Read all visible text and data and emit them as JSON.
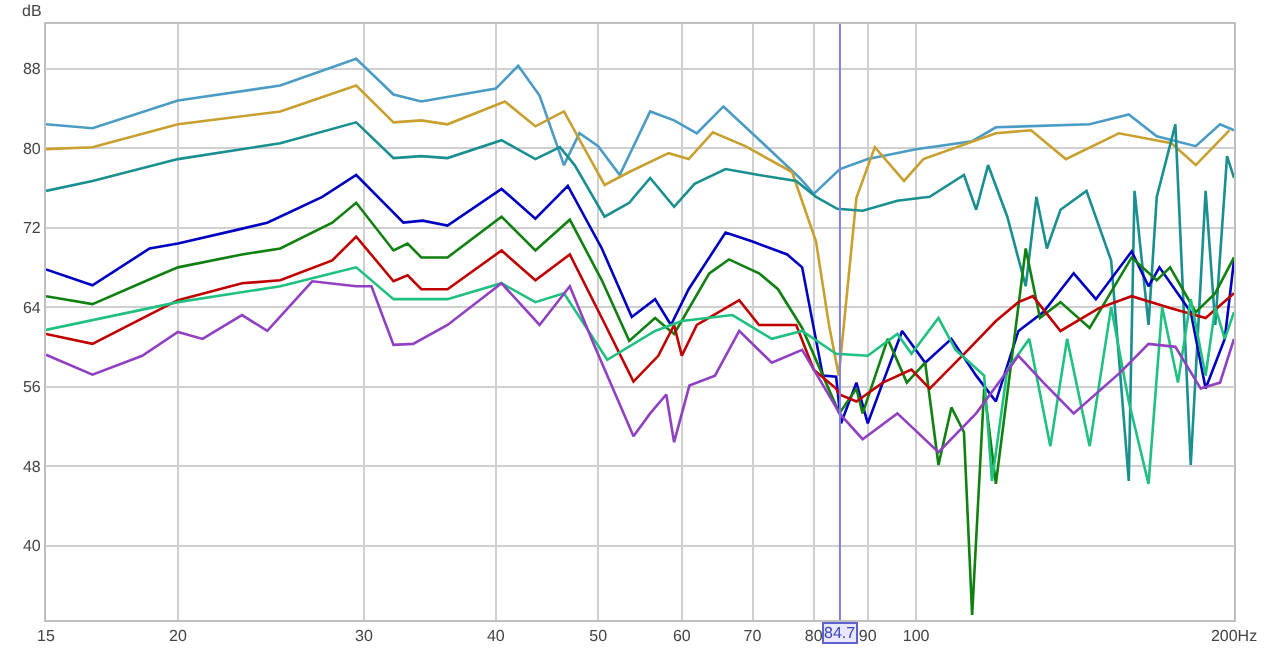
{
  "chart_data": {
    "type": "line",
    "ylabel": "dB",
    "log": "x",
    "grid": true,
    "marker": "none",
    "line_style": "solid",
    "xlim": [
      15,
      200
    ],
    "xticks": [
      15,
      20,
      30,
      40,
      50,
      60,
      70,
      80,
      90,
      100,
      {
        "value": 200,
        "label": "200Hz"
      }
    ],
    "ylim": [
      32.5,
      92.5
    ],
    "yticks": [
      40,
      48,
      56,
      64,
      72,
      80,
      88
    ],
    "ref_lines": [
      {
        "axis": "x",
        "value": 84.7,
        "label": "84.7",
        "color": "#8080e0"
      }
    ],
    "series": [
      {
        "color": "#4a9cc4",
        "x": [
          15,
          16.6,
          20,
          25,
          29.5,
          32,
          34,
          40,
          42,
          44,
          46.4,
          48,
          50,
          52.4,
          56,
          59,
          62,
          65.7,
          71.6,
          77.6,
          80,
          84.7,
          90,
          100,
          113,
          119,
          146,
          159,
          169,
          184,
          194,
          200
        ],
        "values": [
          82.4,
          82,
          84.8,
          86.3,
          89,
          85.4,
          84.7,
          86,
          88.3,
          85.3,
          78.3,
          81.5,
          80.2,
          77.3,
          83.7,
          82.8,
          81.5,
          84.2,
          80.5,
          77,
          75.4,
          77.9,
          78.9,
          79.9,
          80.7,
          82.1,
          82.4,
          83.4,
          81.2,
          80.2,
          82.4,
          81.8
        ]
      },
      {
        "color": "#c8a030",
        "x": [
          15,
          16.6,
          20,
          25,
          29.5,
          32,
          34,
          36,
          40.8,
          43.6,
          46.4,
          50.7,
          53.5,
          58.3,
          60.9,
          64.2,
          68.9,
          76.3,
          80.4,
          82.7,
          84.5,
          87.8,
          91.4,
          97.4,
          101.6,
          119,
          128.5,
          138.6,
          155.6,
          174.5,
          184,
          198
        ],
        "values": [
          79.9,
          80.1,
          82.4,
          83.7,
          86.3,
          82.6,
          82.8,
          82.4,
          84.7,
          82.2,
          83.7,
          76.3,
          77.6,
          79.5,
          78.9,
          81.6,
          80.2,
          77.6,
          70.6,
          62.2,
          57.1,
          75,
          80.1,
          76.7,
          78.9,
          81.5,
          81.8,
          78.9,
          81.5,
          80.5,
          78.3,
          81.8
        ]
      },
      {
        "color": "#1a8f8f",
        "x": [
          15,
          16.6,
          20,
          25,
          29.5,
          32,
          34,
          36,
          40.5,
          43.6,
          46,
          47.5,
          50.7,
          53.5,
          56,
          59,
          61.7,
          66,
          71,
          77,
          80.4,
          84.2,
          89,
          96,
          103,
          111,
          114,
          117,
          122,
          127,
          130,
          133,
          137,
          145,
          153,
          159,
          161,
          166,
          169,
          176,
          182,
          188,
          192,
          197,
          200
        ],
        "values": [
          75.7,
          76.7,
          78.9,
          80.5,
          82.6,
          79,
          79.2,
          79,
          80.8,
          78.9,
          80.1,
          78.3,
          73.1,
          74.5,
          77,
          74.1,
          76.4,
          77.9,
          77.3,
          76.7,
          75.1,
          73.9,
          73.7,
          74.7,
          75.1,
          77.3,
          73.8,
          78.3,
          73.1,
          66.1,
          75.1,
          69.9,
          73.8,
          75.7,
          68.7,
          46.5,
          75.7,
          62.2,
          75.1,
          82.4,
          48.1,
          75.7,
          62.2,
          79.2,
          77
        ]
      },
      {
        "color": "#0000c0",
        "x": [
          15,
          16.6,
          18.8,
          20,
          22.8,
          24.3,
          27.4,
          29.5,
          32.7,
          34.1,
          36,
          40.5,
          43.6,
          46.8,
          50.4,
          53.8,
          56.6,
          58.6,
          60.9,
          66,
          70,
          75.5,
          78,
          81.6,
          84,
          84.9,
          87.8,
          90,
          93,
          97,
          102,
          108,
          114,
          119,
          125,
          132,
          141,
          148,
          160,
          166,
          170,
          182,
          188,
          196,
          200
        ],
        "values": [
          67.8,
          66.2,
          69.9,
          70.4,
          71.8,
          72.5,
          75.1,
          77.3,
          72.5,
          72.7,
          72.2,
          75.9,
          72.9,
          76.2,
          69.9,
          63,
          64.8,
          62.2,
          65.8,
          71.5,
          70.6,
          69.3,
          68,
          57.1,
          57,
          52.3,
          56.4,
          52.3,
          56.4,
          61.6,
          58.4,
          60.8,
          57.1,
          54.5,
          61.6,
          63.5,
          67.4,
          64.8,
          69.6,
          66.1,
          68,
          63.5,
          55.8,
          60.8,
          68.7
        ]
      },
      {
        "color": "#108010",
        "x": [
          15,
          16.6,
          19,
          20,
          23,
          25,
          28,
          29.5,
          32,
          33,
          34,
          36,
          40.5,
          43.6,
          47,
          50.4,
          53.5,
          56.6,
          59,
          63.7,
          66.5,
          71,
          74,
          78,
          81.6,
          84.6,
          87.8,
          89,
          94,
          98,
          102,
          105,
          108,
          111,
          113,
          116,
          119,
          127,
          131,
          137,
          146,
          160,
          169,
          174,
          184,
          192,
          200
        ],
        "values": [
          65.1,
          64.3,
          67,
          68,
          69.3,
          69.9,
          72.5,
          74.5,
          69.7,
          70.4,
          69,
          69,
          73.1,
          69.7,
          72.8,
          66.7,
          60.6,
          62.9,
          61.3,
          67.4,
          68.8,
          67.4,
          65.8,
          61.9,
          57.1,
          53.3,
          55.8,
          53.3,
          60.8,
          56.4,
          58.4,
          48.1,
          53.9,
          51.4,
          33,
          55.8,
          46.2,
          69.9,
          62.9,
          64.5,
          61.9,
          69,
          66.7,
          68,
          63.5,
          65.4,
          69
        ]
      },
      {
        "color": "#c00000",
        "x": [
          15,
          16.6,
          19,
          20,
          23,
          25,
          28,
          29.5,
          32,
          33,
          34,
          36,
          40.5,
          43.6,
          47,
          50.4,
          54,
          57,
          59,
          60,
          62,
          68,
          71,
          77,
          80,
          84,
          84.6,
          87.8,
          93,
          99,
          103,
          112,
          119,
          125,
          129,
          137,
          149,
          160,
          174,
          188,
          200
        ],
        "values": [
          61.3,
          60.3,
          63.5,
          64.7,
          66.4,
          66.7,
          68.7,
          71.1,
          66.6,
          67.2,
          65.8,
          65.8,
          69.7,
          66.7,
          69.3,
          62.9,
          56.5,
          59.1,
          62.2,
          59.1,
          62.2,
          64.7,
          62.2,
          62.2,
          57.7,
          55.8,
          55.2,
          54.5,
          56.4,
          57.7,
          55.8,
          59.7,
          62.6,
          64.5,
          65.1,
          61.6,
          63.9,
          65.1,
          63.9,
          62.9,
          65.4
        ]
      },
      {
        "color": "#20c080",
        "x": [
          15,
          20,
          25,
          28,
          29.5,
          32,
          34,
          36,
          40.5,
          43.6,
          46.4,
          51,
          56.6,
          60,
          67,
          73,
          78,
          84,
          90,
          96,
          99,
          105,
          109,
          116,
          118,
          122,
          128,
          134,
          139,
          146,
          153,
          159,
          166,
          171,
          177,
          182,
          188,
          192,
          196,
          200
        ],
        "values": [
          61.7,
          64.5,
          66.1,
          67.4,
          68,
          64.8,
          64.8,
          64.8,
          66.4,
          64.5,
          65.4,
          58.7,
          61.6,
          62.6,
          63.2,
          60.8,
          61.6,
          59.3,
          59.1,
          61.3,
          59.3,
          62.9,
          59.7,
          57.1,
          46.5,
          57.7,
          60.8,
          50,
          60.8,
          50,
          64,
          54.5,
          46.2,
          64,
          56.4,
          64.8,
          57.1,
          64,
          60.8,
          63.5
        ]
      },
      {
        "color": "#9040c0",
        "x": [
          15,
          16.6,
          18.5,
          20,
          21.1,
          23,
          24.3,
          26.8,
          29.5,
          30.5,
          32,
          33.4,
          36,
          40.5,
          44,
          47,
          49.5,
          54,
          56,
          58,
          59,
          61,
          64.5,
          68,
          73,
          78,
          84,
          84.6,
          89,
          96,
          105,
          114,
          125,
          132,
          141,
          156,
          166,
          176,
          186,
          194,
          200
        ],
        "values": [
          59.2,
          57.2,
          59.1,
          61.5,
          60.8,
          63.2,
          61.6,
          66.6,
          66.1,
          66.1,
          60.2,
          60.3,
          62.2,
          66.4,
          62.2,
          66.1,
          60.3,
          51,
          53.3,
          55.2,
          50.4,
          56.1,
          57.1,
          61.6,
          58.4,
          59.7,
          53.9,
          53.3,
          50.7,
          53.3,
          49.4,
          53.3,
          59.1,
          56.4,
          53.3,
          57.4,
          60.3,
          60,
          55.8,
          56.4,
          60.8
        ]
      }
    ]
  }
}
